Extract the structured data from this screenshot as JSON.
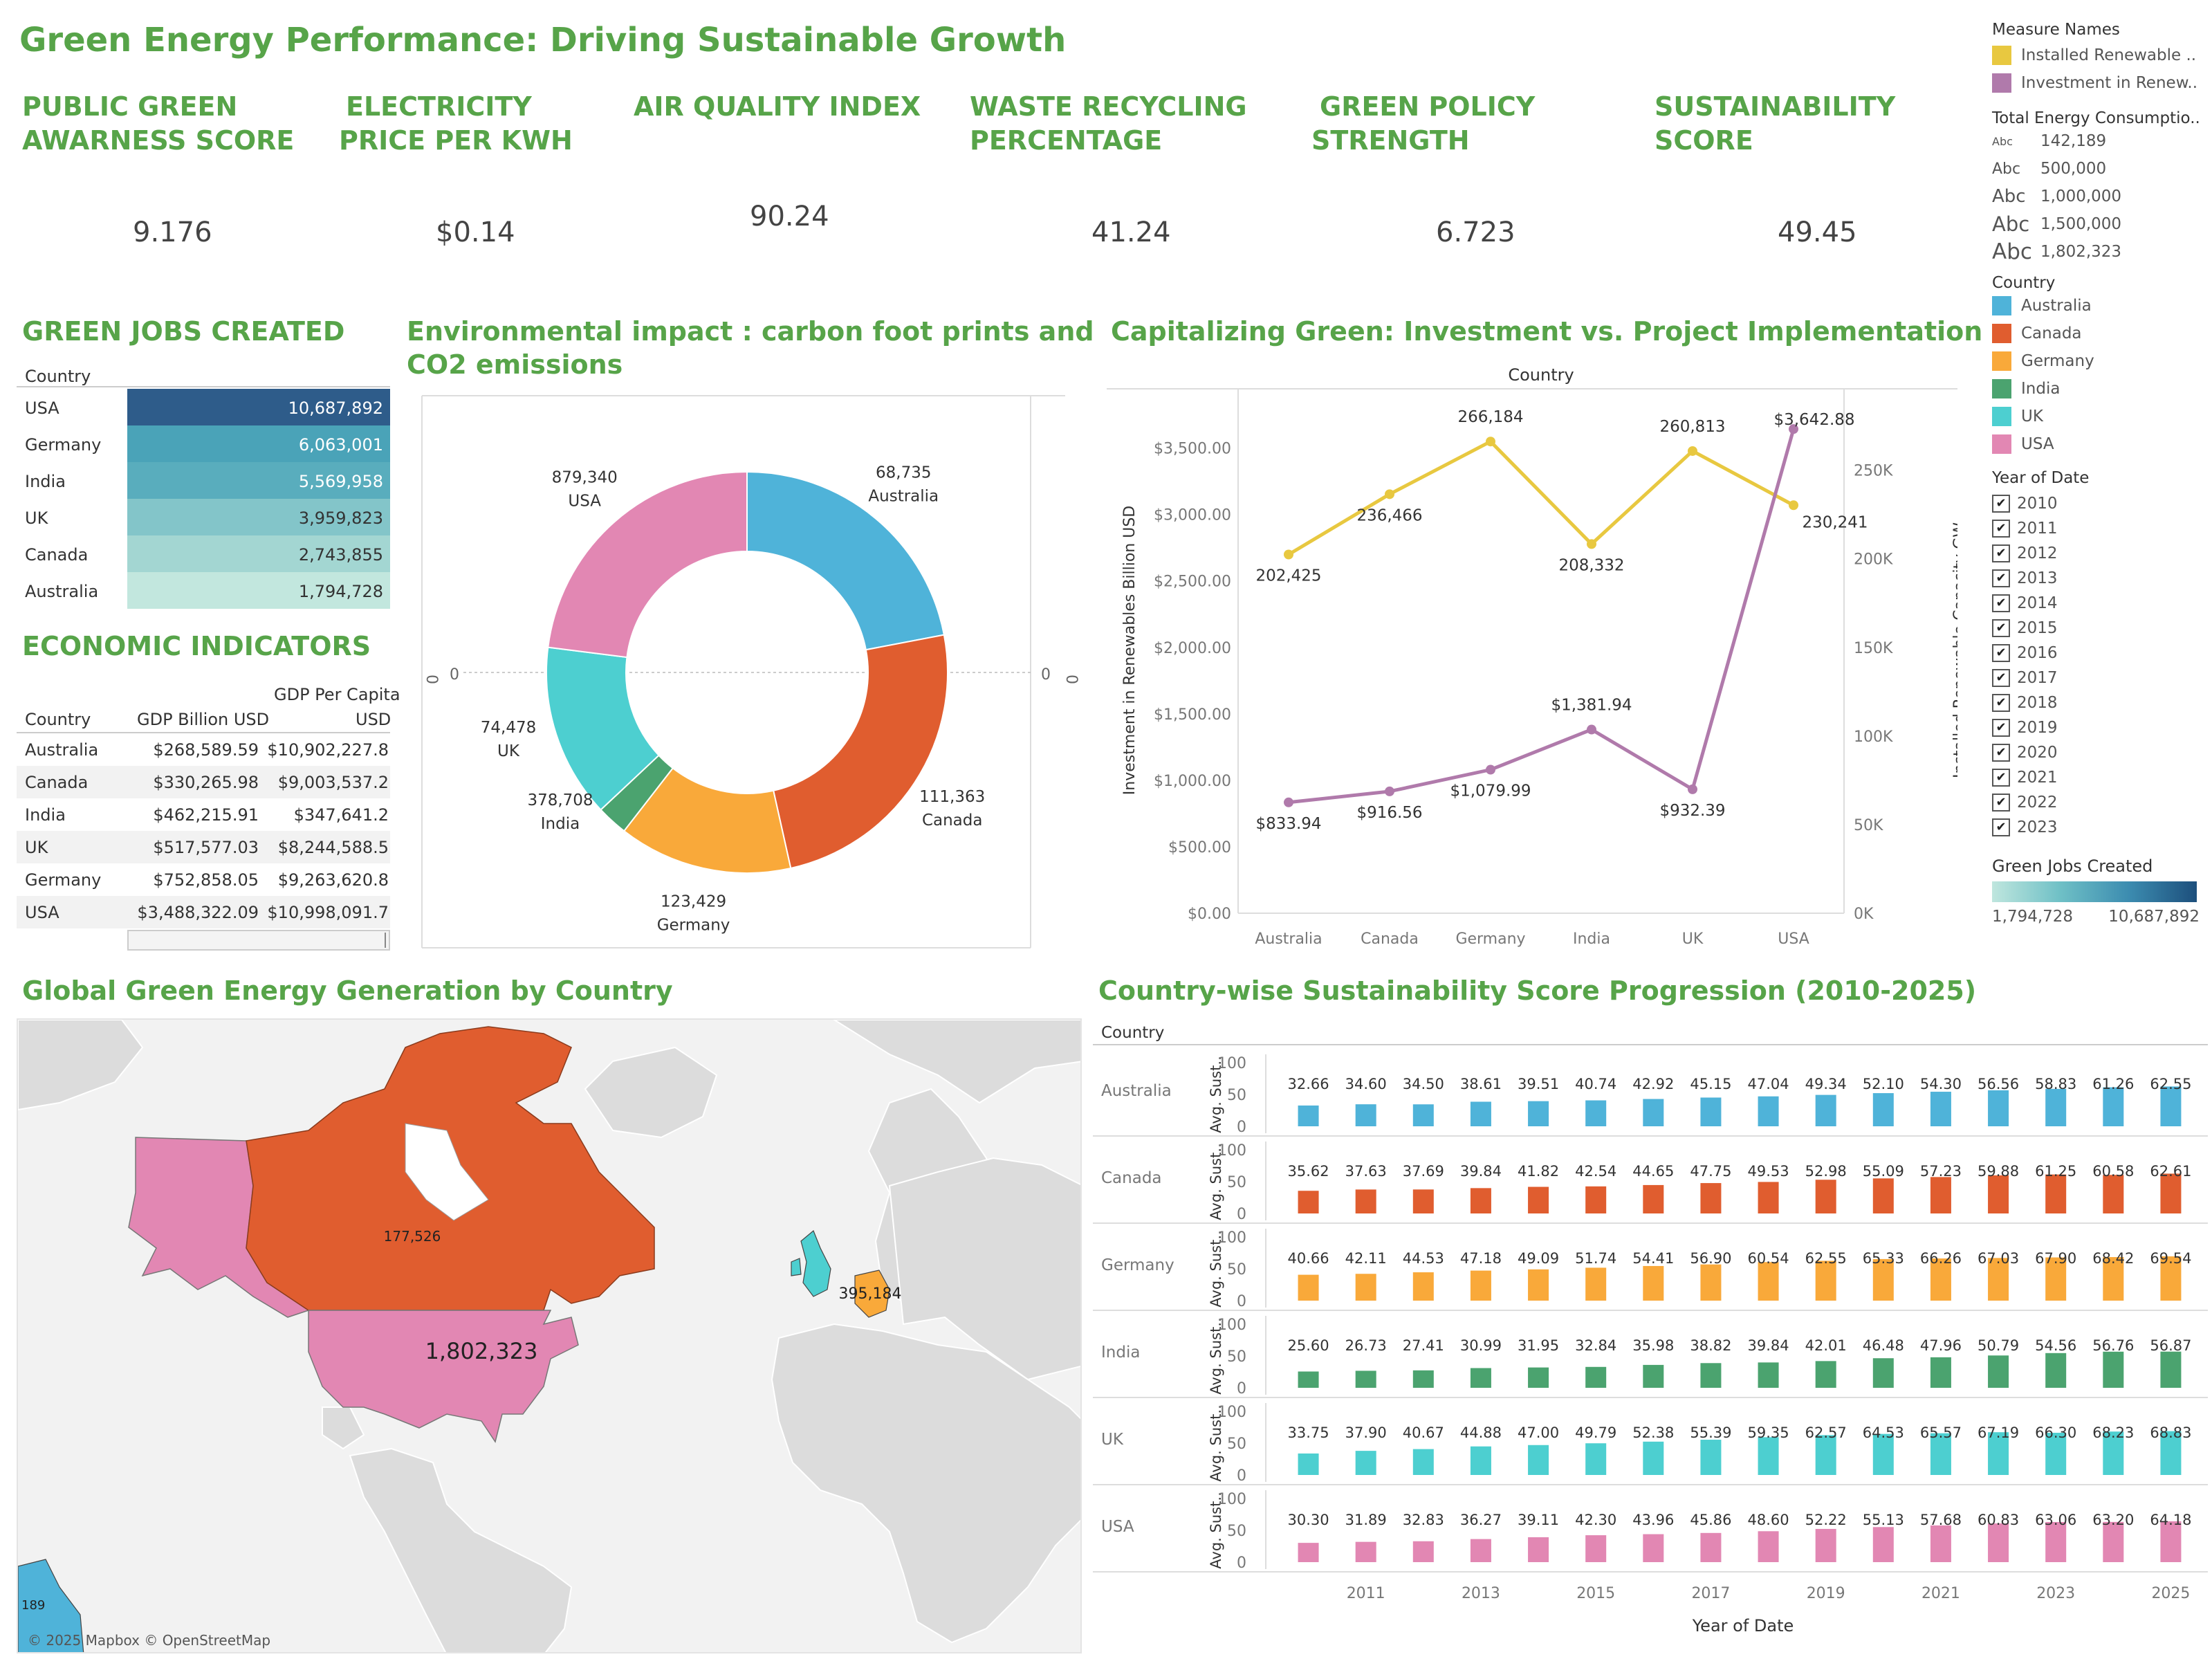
{
  "title": "Green Energy Performance: Driving Sustainable Growth",
  "kpis": [
    {
      "label": "PUBLIC GREEN AWARNESS SCORE",
      "value": "9.176"
    },
    {
      "label": "ELECTRICITY PRICE PER KWH",
      "value": "$0.14"
    },
    {
      "label": "AIR QUALITY INDEX",
      "value": "90.24"
    },
    {
      "label": "WASTE RECYCLING PERCENTAGE",
      "value": "41.24"
    },
    {
      "label": "GREEN POLICY STRENGTH",
      "value": "6.723"
    },
    {
      "label": "SUSTAINABILITY SCORE",
      "value": "49.45"
    }
  ],
  "green_jobs": {
    "title": "GREEN JOBS CREATED",
    "header": "Country",
    "rows": [
      {
        "country": "USA",
        "value": "10,687,892",
        "color": "#2e5c8a"
      },
      {
        "country": "Germany",
        "value": "6,063,001",
        "color": "#4aa3b8"
      },
      {
        "country": "India",
        "value": "5,569,958",
        "color": "#59adbd"
      },
      {
        "country": "UK",
        "value": "3,959,823",
        "color": "#83c5c9"
      },
      {
        "country": "Canada",
        "value": "2,743,855",
        "color": "#a3d6d2"
      },
      {
        "country": "Australia",
        "value": "1,794,728",
        "color": "#c2e7de"
      }
    ]
  },
  "economic": {
    "title": "ECONOMIC INDICATORS",
    "col_country": "Country",
    "col_gdp": "GDP Billion USD",
    "col_gdppc_1": "GDP Per Capita",
    "col_gdppc_2": "USD",
    "rows": [
      {
        "country": "Australia",
        "gdp": "$268,589.59",
        "pc": "$10,902,227.8"
      },
      {
        "country": "Canada",
        "gdp": "$330,265.98",
        "pc": "$9,003,537.2"
      },
      {
        "country": "India",
        "gdp": "$462,215.91",
        "pc": "$347,641.2"
      },
      {
        "country": "UK",
        "gdp": "$517,577.03",
        "pc": "$8,244,588.5"
      },
      {
        "country": "Germany",
        "gdp": "$752,858.05",
        "pc": "$9,263,620.8"
      },
      {
        "country": "USA",
        "gdp": "$3,488,322.09",
        "pc": "$10,998,091.7"
      }
    ]
  },
  "donut": {
    "title": "Environmental impact : carbon foot prints and CO2 emissions",
    "axis_zero": "0",
    "chart_data": {
      "type": "pie",
      "slices": [
        {
          "country": "Australia",
          "value": 68735,
          "label": "68,735",
          "color": "#4fb3d9"
        },
        {
          "country": "Canada",
          "value": 111363,
          "label": "111,363",
          "color": "#e05d2f"
        },
        {
          "country": "Germany",
          "value": 123429,
          "label": "123,429",
          "color": "#f9a93a"
        },
        {
          "country": "India",
          "value": 378708,
          "label": "378,708",
          "color": "#4ba36f"
        },
        {
          "country": "UK",
          "value": 74478,
          "label": "74,478",
          "color": "#4dcfd0"
        },
        {
          "country": "USA",
          "value": 879340,
          "label": "879,340",
          "color": "#e287b3"
        }
      ]
    }
  },
  "invest": {
    "title": "Capitalizing Green: Investment vs. Project Implementation",
    "top_label": "Country",
    "y_left_label": "Investment in Renewables Billion USD",
    "y_right_label": "Installed Renewable Capacity GW",
    "left_ticks": [
      "$0.00",
      "$500.00",
      "$1,000.00",
      "$1,500.00",
      "$2,000.00",
      "$2,500.00",
      "$3,000.00",
      "$3,500.00"
    ],
    "right_ticks": [
      "0K",
      "50K",
      "100K",
      "150K",
      "200K",
      "250K"
    ],
    "chart_data": {
      "type": "line",
      "categories": [
        "Australia",
        "Canada",
        "Germany",
        "India",
        "UK",
        "USA"
      ],
      "series": [
        {
          "name": "Installed Renewable ..",
          "axis": "right",
          "color": "#e8c840",
          "values": [
            202425,
            236466,
            266184,
            208332,
            260813,
            230241
          ],
          "labels": [
            "202,425",
            "236,466",
            "266,184",
            "208,332",
            "260,813",
            "230,241"
          ]
        },
        {
          "name": "Investment in Renew..",
          "axis": "left",
          "color": "#b07aab",
          "values": [
            833.94,
            916.56,
            1079.99,
            1381.94,
            932.39,
            3642.88
          ],
          "labels": [
            "$833.94",
            "$916.56",
            "$1,079.99",
            "$1,381.94",
            "$932.39",
            "$3,642.88"
          ]
        }
      ],
      "ylim_left": [
        0,
        3800
      ],
      "ylim_right": [
        0,
        285000
      ]
    }
  },
  "legend": {
    "measure_title": "Measure Names",
    "measures": [
      {
        "name": "Installed Renewable ..",
        "color": "#e8c840"
      },
      {
        "name": "Investment in Renew..",
        "color": "#b07aab"
      }
    ],
    "energy_title": "Total Energy Consumptio..",
    "energy_items": [
      "142,189",
      "500,000",
      "1,000,000",
      "1,500,000",
      "1,802,323"
    ],
    "abc": "Abc",
    "country_title": "Country",
    "countries": [
      {
        "name": "Australia",
        "color": "#4fb3d9"
      },
      {
        "name": "Canada",
        "color": "#e05d2f"
      },
      {
        "name": "Germany",
        "color": "#f9a93a"
      },
      {
        "name": "India",
        "color": "#4ba36f"
      },
      {
        "name": "UK",
        "color": "#4dcfd0"
      },
      {
        "name": "USA",
        "color": "#e287b3"
      }
    ],
    "year_title": "Year of Date",
    "years": [
      "2010",
      "2011",
      "2012",
      "2013",
      "2014",
      "2015",
      "2016",
      "2017",
      "2018",
      "2019",
      "2020",
      "2021",
      "2022",
      "2023"
    ],
    "check": "✔",
    "jobs_title": "Green Jobs Created",
    "jobs_min": "1,794,728",
    "jobs_max": "10,687,892"
  },
  "map": {
    "title": "Global Green Energy Generation by Country",
    "labels": {
      "canada": "177,526",
      "usa": "1,802,323",
      "germany": "395,184",
      "australia": "189"
    },
    "attribution": "© 2025 Mapbox © OpenStreetMap"
  },
  "progression": {
    "title": "Country-wise Sustainability Score Progression (2010-2025)",
    "country_header": "Country",
    "y_axis_label": "Avg. Sust..",
    "y_ticks": [
      "0",
      "50",
      "100"
    ],
    "x_label": "Year of Date",
    "x_ticks": [
      "2011",
      "2013",
      "2015",
      "2017",
      "2019",
      "2021",
      "2023",
      "2025"
    ],
    "chart_data": {
      "type": "bar",
      "categories": [
        "2010",
        "2011",
        "2012",
        "2013",
        "2014",
        "2015",
        "2016",
        "2017",
        "2018",
        "2019",
        "2020",
        "2021",
        "2022",
        "2023",
        "2024",
        "2025"
      ],
      "ylim": [
        0,
        100
      ],
      "series": [
        {
          "name": "Australia",
          "color": "#4fb3d9",
          "values": [
            32.66,
            34.6,
            34.5,
            38.61,
            39.51,
            40.74,
            42.92,
            45.15,
            47.04,
            49.34,
            52.1,
            54.3,
            56.56,
            58.83,
            61.26,
            62.55
          ]
        },
        {
          "name": "Canada",
          "color": "#e05d2f",
          "values": [
            35.62,
            37.63,
            37.69,
            39.84,
            41.82,
            42.54,
            44.65,
            47.75,
            49.53,
            52.98,
            55.09,
            57.23,
            59.88,
            61.25,
            60.58,
            62.61
          ]
        },
        {
          "name": "Germany",
          "color": "#f9a93a",
          "values": [
            40.66,
            42.11,
            44.53,
            47.18,
            49.09,
            51.74,
            54.41,
            56.9,
            60.54,
            62.55,
            65.33,
            66.26,
            67.03,
            67.9,
            68.42,
            69.54
          ]
        },
        {
          "name": "India",
          "color": "#4ba36f",
          "values": [
            25.6,
            26.73,
            27.41,
            30.99,
            31.95,
            32.84,
            35.98,
            38.82,
            39.84,
            42.01,
            46.48,
            47.96,
            50.79,
            54.56,
            56.76,
            56.87
          ]
        },
        {
          "name": "UK",
          "color": "#4dcfd0",
          "values": [
            33.75,
            37.9,
            40.67,
            44.88,
            47.0,
            49.79,
            52.38,
            55.39,
            59.35,
            62.57,
            64.53,
            65.57,
            67.19,
            66.3,
            68.23,
            68.83
          ]
        },
        {
          "name": "USA",
          "color": "#e287b3",
          "values": [
            30.3,
            31.89,
            32.83,
            36.27,
            39.11,
            42.3,
            43.96,
            45.86,
            48.6,
            52.22,
            55.13,
            57.68,
            60.83,
            63.06,
            63.2,
            64.18
          ]
        }
      ]
    }
  }
}
